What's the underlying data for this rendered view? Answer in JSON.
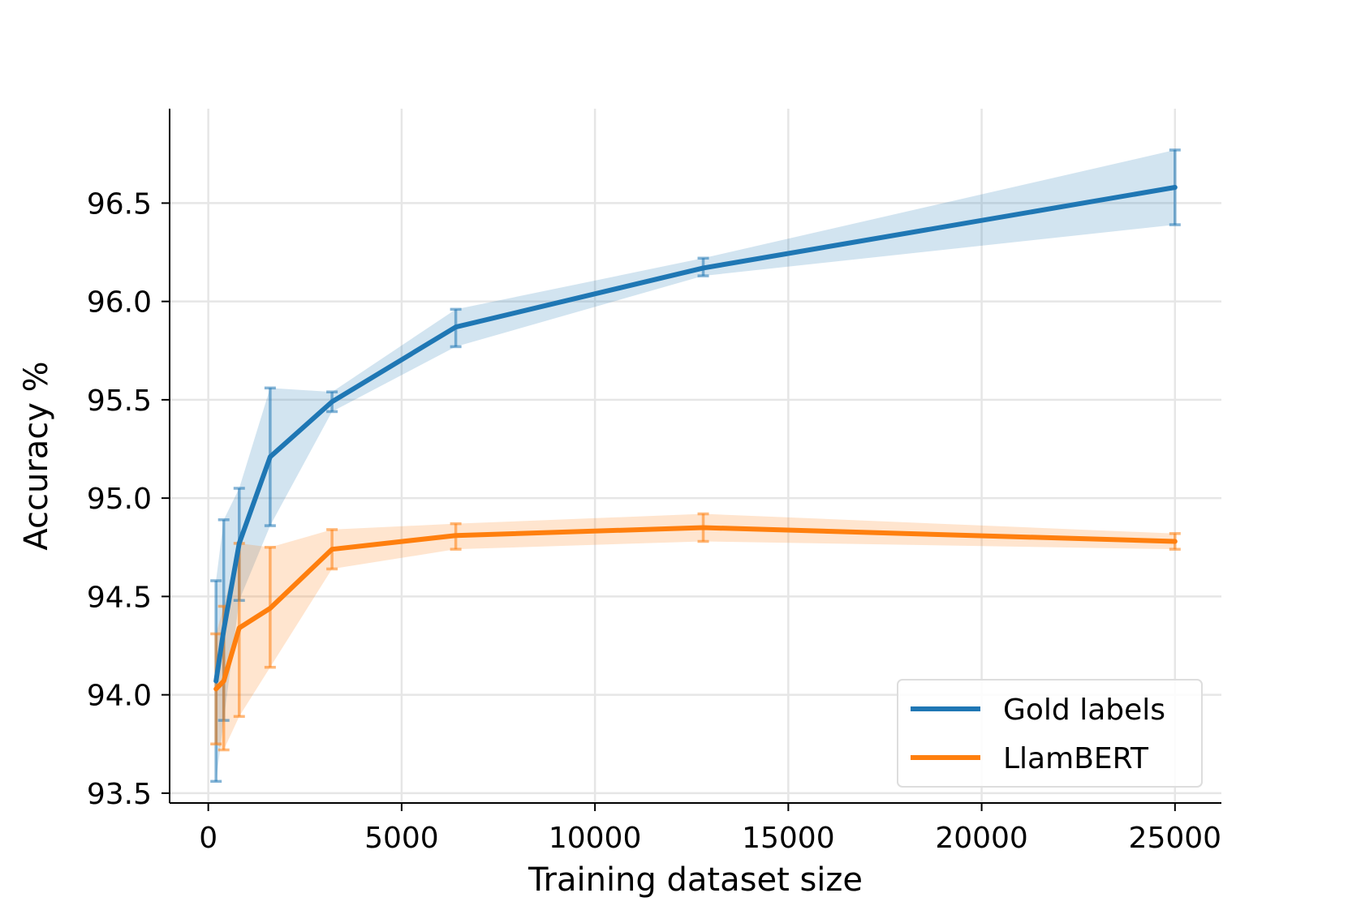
{
  "chart_data": {
    "type": "line",
    "title": "",
    "xlabel": "Training dataset size",
    "ylabel": "Accuracy %",
    "xlim": [
      -1000,
      26200
    ],
    "ylim": [
      93.45,
      96.98
    ],
    "xticks": [
      0,
      5000,
      10000,
      15000,
      20000,
      25000
    ],
    "xtick_labels": [
      "0",
      "5000",
      "10000",
      "15000",
      "20000",
      "25000"
    ],
    "yticks": [
      93.5,
      94.0,
      94.5,
      95.0,
      95.5,
      96.0,
      96.5
    ],
    "ytick_labels": [
      "93.5",
      "94.0",
      "94.5",
      "95.0",
      "95.5",
      "96.0",
      "96.5"
    ],
    "grid": true,
    "legend_position": "lower right",
    "series": [
      {
        "name": "Gold labels",
        "color": "#1f77b4",
        "x": [
          200,
          400,
          800,
          1600,
          3200,
          6400,
          12800,
          25000
        ],
        "y": [
          94.07,
          94.33,
          94.77,
          95.21,
          95.49,
          95.87,
          96.17,
          96.58
        ],
        "err_low": [
          93.56,
          93.87,
          94.48,
          94.86,
          95.44,
          95.77,
          96.13,
          96.39
        ],
        "err_high": [
          94.58,
          94.89,
          95.05,
          95.56,
          95.54,
          95.96,
          96.22,
          96.77
        ]
      },
      {
        "name": "LlamBERT",
        "color": "#ff7f0e",
        "x": [
          200,
          400,
          800,
          1600,
          3200,
          6400,
          12800,
          25000
        ],
        "y": [
          94.03,
          94.07,
          94.34,
          94.44,
          94.74,
          94.81,
          94.85,
          94.78
        ],
        "err_low": [
          93.75,
          93.72,
          93.89,
          94.14,
          94.64,
          94.74,
          94.78,
          94.74
        ],
        "err_high": [
          94.31,
          94.45,
          94.77,
          94.75,
          94.84,
          94.87,
          94.92,
          94.82
        ]
      }
    ]
  }
}
